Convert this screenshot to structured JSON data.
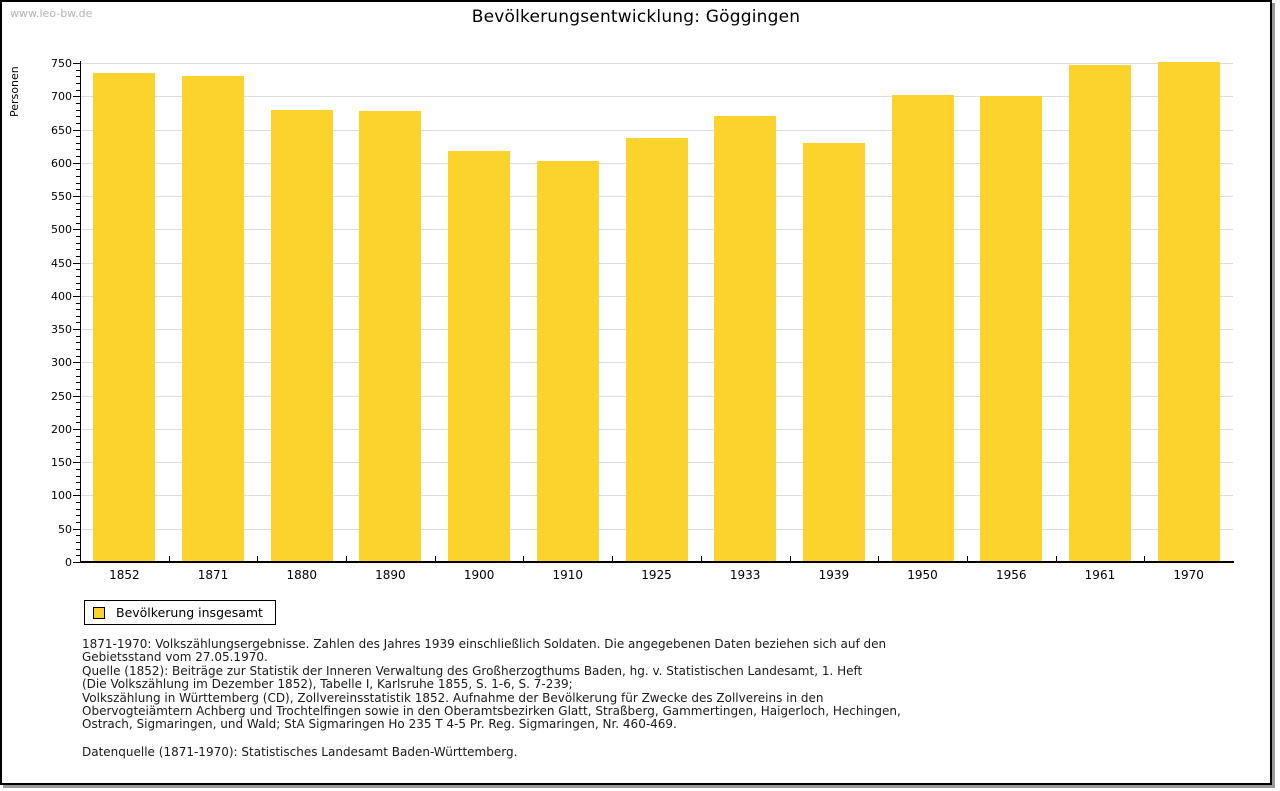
{
  "page": {
    "watermark": "www.leo-bw.de",
    "title": "Bevölkerungsentwicklung: Göggingen"
  },
  "chart_data": {
    "type": "bar",
    "title": "Bevölkerungsentwicklung: Göggingen",
    "xlabel": "",
    "ylabel": "Personen",
    "ylim": [
      0,
      750
    ],
    "ytick_step": 50,
    "yminor_step": 10,
    "grid": true,
    "legend_position": "bottom-left",
    "categories": [
      "1852",
      "1871",
      "1880",
      "1890",
      "1900",
      "1910",
      "1925",
      "1933",
      "1939",
      "1950",
      "1956",
      "1961",
      "1970"
    ],
    "series": [
      {
        "name": "Bevölkerung insgesamt",
        "color": "#FCD32D",
        "values": [
          735,
          731,
          680,
          678,
          618,
          603,
          638,
          670,
          630,
          702,
          700,
          747,
          751
        ]
      }
    ]
  },
  "colors": {
    "bar": "#FCD32D",
    "grid": "#DCDCDC",
    "axis": "#000000",
    "watermark": "#B4B4B4"
  },
  "footnotes": {
    "lines": [
      "1871-1970: Volkszählungsergebnisse. Zahlen des Jahres 1939 einschließlich Soldaten. Die angegebenen Daten beziehen sich auf den",
      "Gebietsstand vom 27.05.1970.",
      "Quelle (1852): Beiträge zur Statistik der Inneren Verwaltung des Großherzogthums Baden, hg. v. Statistischen Landesamt, 1. Heft",
      "(Die Volkszählung im Dezember 1852), Tabelle I, Karlsruhe 1855, S. 1-6, S. 7-239;",
      "Volkszählung in Württemberg (CD), Zollvereinsstatistik 1852. Aufnahme der Bevölkerung für Zwecke des Zollvereins in den",
      "Obervogteiämtern Achberg und Trochtelfingen sowie in den Oberamtsbezirken Glatt, Straßberg, Gammertingen, Haigerloch, Hechingen,",
      "Ostrach, Sigmaringen, und Wald; StA Sigmaringen Ho 235 T 4-5 Pr. Reg. Sigmaringen, Nr. 460-469."
    ],
    "source": "Datenquelle (1871-1970): Statistisches Landesamt Baden-Württemberg."
  }
}
